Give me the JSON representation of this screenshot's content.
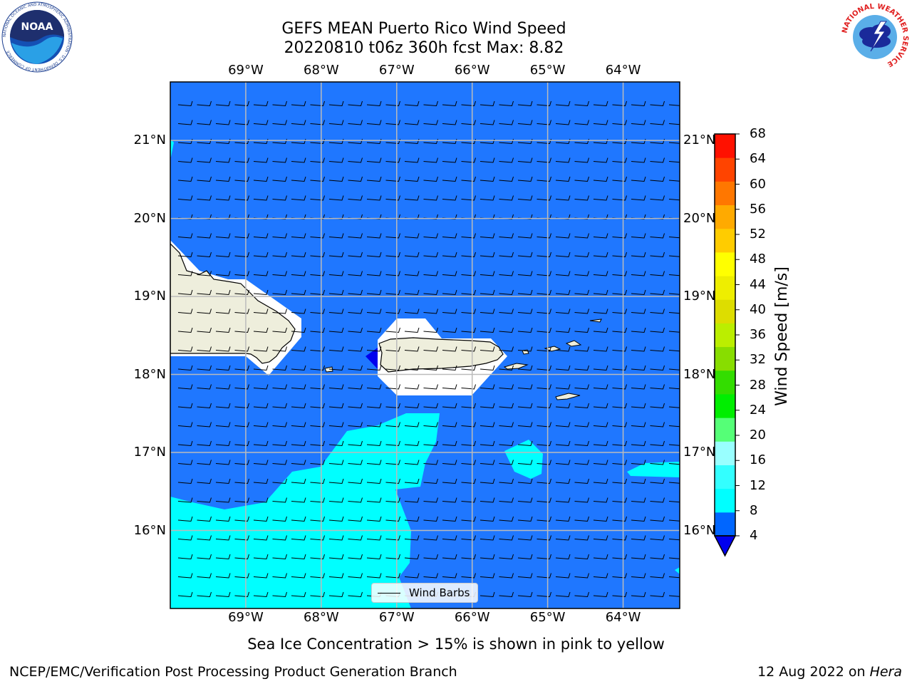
{
  "title": {
    "line1": "GEFS MEAN Puerto Rico Wind Speed",
    "line2": "20220810 t06z 360h fcst   Max: 8.82"
  },
  "logos": {
    "noaa_text": "NOAA",
    "noaa_ring_text": "NATIONAL OCEANIC AND ATMOSPHERIC ADMINISTRATION · U.S. DEPARTMENT OF COMMERCE",
    "nws_ring_text": "NATIONAL WEATHER SERVICE"
  },
  "map": {
    "lon_labels": [
      "69°W",
      "68°W",
      "67°W",
      "66°W",
      "65°W",
      "64°W"
    ],
    "lon_values": [
      -69,
      -68,
      -67,
      -66,
      -65,
      -64
    ],
    "lat_labels": [
      "21°N",
      "20°N",
      "19°N",
      "18°N",
      "17°N",
      "16°N"
    ],
    "lat_values": [
      21,
      20,
      19,
      18,
      17,
      16
    ],
    "lon_range": [
      -70.0,
      -63.25
    ],
    "lat_range": [
      15.0,
      21.75
    ],
    "gridlines": true,
    "background_color": "#1f77ff",
    "land_color": "#eeeedc",
    "shade_light": "#00ffff"
  },
  "legend": {
    "label": "Wind Barbs",
    "placement": "bottom-center"
  },
  "colorbar": {
    "label": "Wind Speed [m/s]",
    "ticks": [
      "68",
      "64",
      "60",
      "56",
      "52",
      "48",
      "44",
      "40",
      "36",
      "32",
      "28",
      "24",
      "20",
      "16",
      "12",
      "8",
      "4"
    ],
    "colors_low_to_high": [
      "#0066ff",
      "#00ffff",
      "#33ffff",
      "#99ffff",
      "#55ff77",
      "#00ee00",
      "#33dd00",
      "#88dd00",
      "#bbee00",
      "#dddd00",
      "#eeee00",
      "#ffff00",
      "#ffcc00",
      "#ffaa00",
      "#ff7700",
      "#ff4400",
      "#ff1100"
    ],
    "under_color": "#0000ee"
  },
  "footer": {
    "ice_note": "Sea Ice Concentration > 15% is shown in pink to yellow",
    "branch": "NCEP/EMC/Verification Post Processing Product Generation Branch",
    "date": "12 Aug 2022 on",
    "machine": "Hera"
  },
  "chart_data": {
    "type": "heatmap",
    "title": "GEFS MEAN Puerto Rico Wind Speed",
    "subtitle": "20220810 t06z 360h fcst   Max: 8.82",
    "variable": "Wind Speed [m/s]",
    "max_value": 8.82,
    "color_levels": [
      4,
      8,
      12,
      16,
      20,
      24,
      28,
      32,
      36,
      40,
      44,
      48,
      52,
      56,
      60,
      64,
      68
    ],
    "field_summary": [
      {
        "range": "4-8",
        "area": "most of domain (north and central)"
      },
      {
        "range": "8-12",
        "area": "south and southwest of Puerto Rico, small patches east"
      },
      {
        "range": "<4",
        "area": "small patch west of Puerto Rico"
      }
    ],
    "wind_barbs": "easterly flow across domain",
    "legend": [
      "Wind Barbs"
    ]
  }
}
